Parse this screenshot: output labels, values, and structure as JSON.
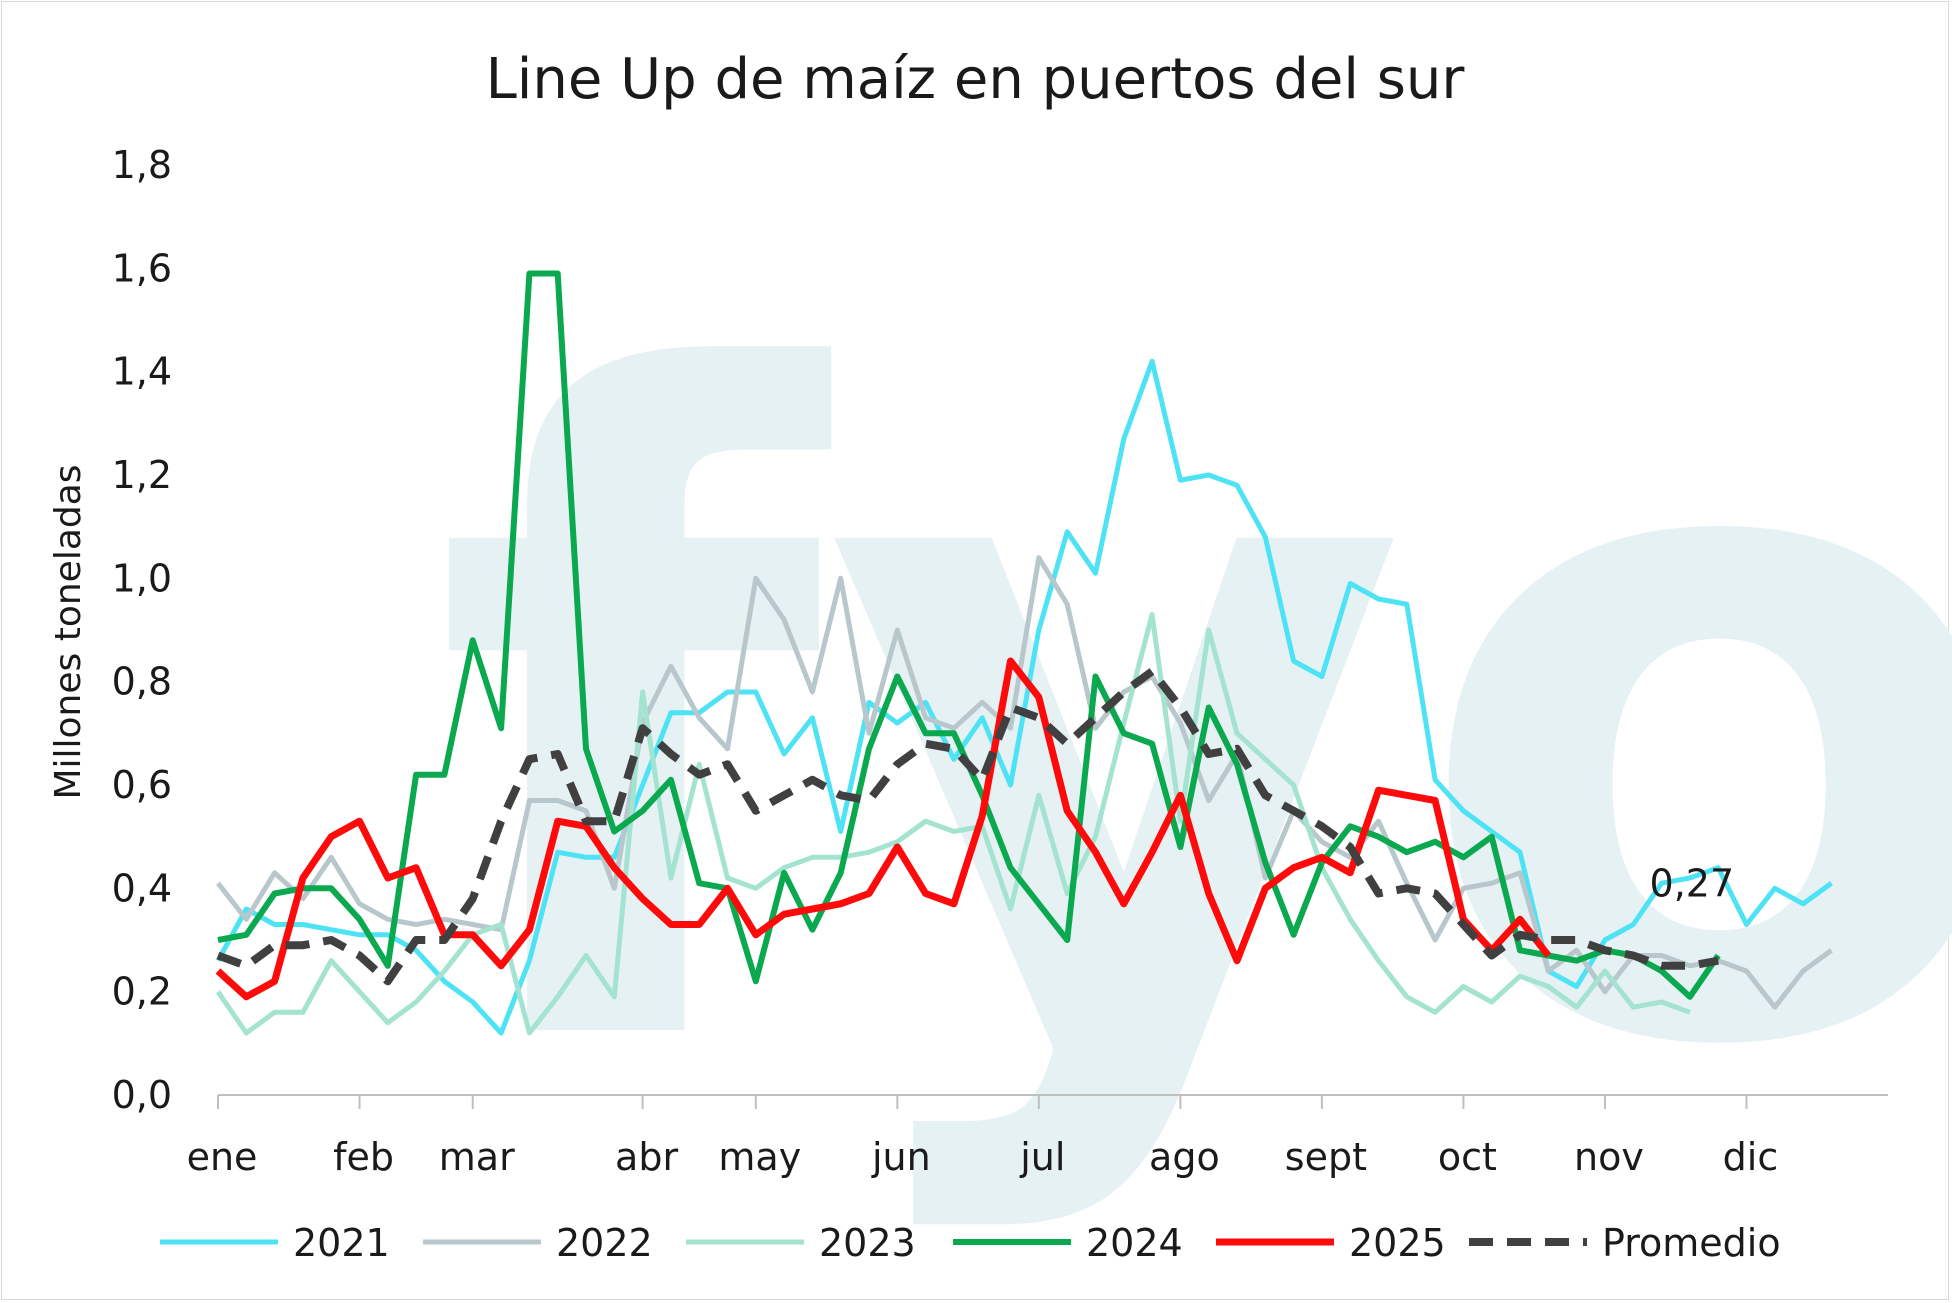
{
  "watermark": "fyo",
  "chart_data": {
    "type": "line",
    "title": "Line Up de maíz en puertos del sur",
    "ylabel": "Millones toneladas",
    "xlabel": "",
    "ylim": [
      0,
      1.8
    ],
    "yticks": [
      "0,0",
      "0,2",
      "0,4",
      "0,6",
      "0,8",
      "1,0",
      "1,2",
      "1,4",
      "1,6",
      "1,8"
    ],
    "ytick_values": [
      0,
      0.2,
      0.4,
      0.6,
      0.8,
      1.0,
      1.2,
      1.4,
      1.6,
      1.8
    ],
    "months": [
      "ene",
      "feb",
      "mar",
      "abr",
      "may",
      "jun",
      "jul",
      "ago",
      "sept",
      "oct",
      "nov",
      "dic"
    ],
    "month_week_index": [
      0,
      5,
      9,
      15,
      19,
      24,
      29,
      34,
      39,
      44,
      49,
      54
    ],
    "weeks_total": 59,
    "grid": false,
    "legend_position": "bottom",
    "annotation": {
      "text": "0,27",
      "series": "2025",
      "week": 51
    },
    "series": [
      {
        "name": "2021",
        "color": "#4de3f5",
        "width": 5,
        "dash": "",
        "values": [
          0.26,
          0.36,
          0.33,
          0.33,
          0.32,
          0.31,
          0.31,
          0.28,
          0.22,
          0.18,
          0.12,
          0.26,
          0.47,
          0.46,
          0.46,
          0.6,
          0.74,
          0.74,
          0.78,
          0.78,
          0.66,
          0.73,
          0.51,
          0.76,
          0.72,
          0.76,
          0.65,
          0.73,
          0.6,
          0.9,
          1.09,
          1.01,
          1.27,
          1.42,
          1.19,
          1.2,
          1.18,
          1.08,
          0.84,
          0.81,
          0.99,
          0.96,
          0.95,
          0.61,
          0.55,
          0.51,
          0.47,
          0.24,
          0.21,
          0.3,
          0.33,
          0.41,
          0.42,
          0.44,
          0.33,
          0.4,
          0.37,
          0.41
        ]
      },
      {
        "name": "2022",
        "color": "#b8c7cc",
        "width": 5,
        "dash": "",
        "values": [
          0.41,
          0.34,
          0.43,
          0.38,
          0.46,
          0.37,
          0.34,
          0.33,
          0.34,
          0.33,
          0.32,
          0.57,
          0.57,
          0.55,
          0.4,
          0.72,
          0.83,
          0.73,
          0.67,
          1.0,
          0.92,
          0.78,
          1.0,
          0.7,
          0.9,
          0.73,
          0.71,
          0.76,
          0.71,
          1.04,
          0.95,
          0.71,
          0.78,
          0.81,
          0.72,
          0.57,
          0.66,
          0.42,
          0.55,
          0.49,
          0.46,
          0.53,
          0.41,
          0.3,
          0.4,
          0.41,
          0.43,
          0.24,
          0.28,
          0.2,
          0.27,
          0.27,
          0.25,
          0.26,
          0.24,
          0.17,
          0.24,
          0.28
        ]
      },
      {
        "name": "2023",
        "color": "#a3e3cf",
        "width": 5,
        "dash": "",
        "values": [
          0.2,
          0.12,
          0.16,
          0.16,
          0.26,
          0.2,
          0.14,
          0.18,
          0.24,
          0.31,
          0.33,
          0.12,
          0.19,
          0.27,
          0.19,
          0.78,
          0.42,
          0.64,
          0.42,
          0.4,
          0.44,
          0.46,
          0.46,
          0.47,
          0.49,
          0.53,
          0.51,
          0.52,
          0.36,
          0.58,
          0.39,
          0.5,
          0.72,
          0.93,
          0.53,
          0.9,
          0.7,
          0.65,
          0.6,
          0.44,
          0.34,
          0.26,
          0.19,
          0.16,
          0.21,
          0.18,
          0.23,
          0.21,
          0.17,
          0.24,
          0.17,
          0.18,
          0.16
        ]
      },
      {
        "name": "2024",
        "color": "#0aa84f",
        "width": 6,
        "dash": "",
        "values": [
          0.3,
          0.31,
          0.39,
          0.4,
          0.4,
          0.34,
          0.25,
          0.62,
          0.62,
          0.88,
          0.71,
          1.59,
          1.59,
          0.67,
          0.51,
          0.55,
          0.61,
          0.41,
          0.4,
          0.22,
          0.43,
          0.32,
          0.43,
          0.67,
          0.81,
          0.7,
          0.7,
          0.58,
          0.44,
          0.37,
          0.3,
          0.81,
          0.7,
          0.68,
          0.48,
          0.75,
          0.64,
          0.45,
          0.31,
          0.45,
          0.52,
          0.5,
          0.47,
          0.49,
          0.46,
          0.5,
          0.28,
          0.27,
          0.26,
          0.28,
          0.27,
          0.24,
          0.19,
          0.27
        ]
      },
      {
        "name": "2025",
        "color": "#ff0a0a",
        "width": 7,
        "dash": "",
        "values": [
          0.24,
          0.19,
          0.22,
          0.42,
          0.5,
          0.53,
          0.42,
          0.44,
          0.31,
          0.31,
          0.25,
          0.32,
          0.53,
          0.52,
          0.44,
          0.38,
          0.33,
          0.33,
          0.4,
          0.31,
          0.35,
          0.36,
          0.37,
          0.39,
          0.48,
          0.39,
          0.37,
          0.54,
          0.84,
          0.77,
          0.55,
          0.47,
          0.37,
          0.47,
          0.58,
          0.39,
          0.26,
          0.4,
          0.44,
          0.46,
          0.43,
          0.59,
          0.58,
          0.57,
          0.34,
          0.28,
          0.34,
          0.27
        ]
      },
      {
        "name": "Promedio",
        "color": "#404040",
        "width": 8,
        "dash": "24 14",
        "values": [
          0.27,
          0.25,
          0.29,
          0.29,
          0.3,
          0.27,
          0.22,
          0.3,
          0.3,
          0.38,
          0.53,
          0.65,
          0.66,
          0.53,
          0.53,
          0.71,
          0.66,
          0.62,
          0.64,
          0.55,
          0.58,
          0.61,
          0.58,
          0.57,
          0.64,
          0.68,
          0.67,
          0.61,
          0.75,
          0.73,
          0.68,
          0.73,
          0.78,
          0.82,
          0.75,
          0.66,
          0.67,
          0.58,
          0.55,
          0.52,
          0.48,
          0.39,
          0.4,
          0.39,
          0.33,
          0.27,
          0.31,
          0.3,
          0.3,
          0.28,
          0.27,
          0.25,
          0.25,
          0.26
        ]
      }
    ]
  }
}
